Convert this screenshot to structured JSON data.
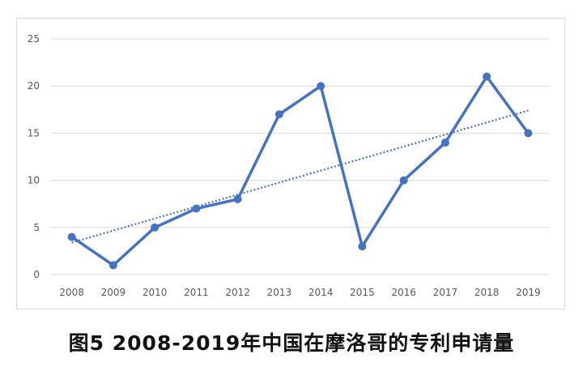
{
  "caption": "图5  2008-2019年中国在摩洛哥的专利申请量",
  "chart_data": {
    "type": "line",
    "title": "",
    "xlabel": "",
    "ylabel": "",
    "categories": [
      "2008",
      "2009",
      "2010",
      "2011",
      "2012",
      "2013",
      "2014",
      "2015",
      "2016",
      "2017",
      "2018",
      "2019"
    ],
    "series": [
      {
        "values": [
          4,
          1,
          5,
          7,
          8,
          17,
          20,
          3,
          10,
          14,
          21,
          15
        ]
      }
    ],
    "trendline": {
      "type": "linear",
      "style": "dotted",
      "start": 3.4,
      "end": 17.4
    },
    "ylim": [
      0,
      25
    ],
    "yticks": [
      0,
      5,
      10,
      15,
      20,
      25
    ],
    "grid": true,
    "legend": "none",
    "colors": {
      "line": "#4472C4",
      "trend": "#4472C4",
      "grid": "#d9d9d9",
      "tick_text": "#595959"
    }
  }
}
